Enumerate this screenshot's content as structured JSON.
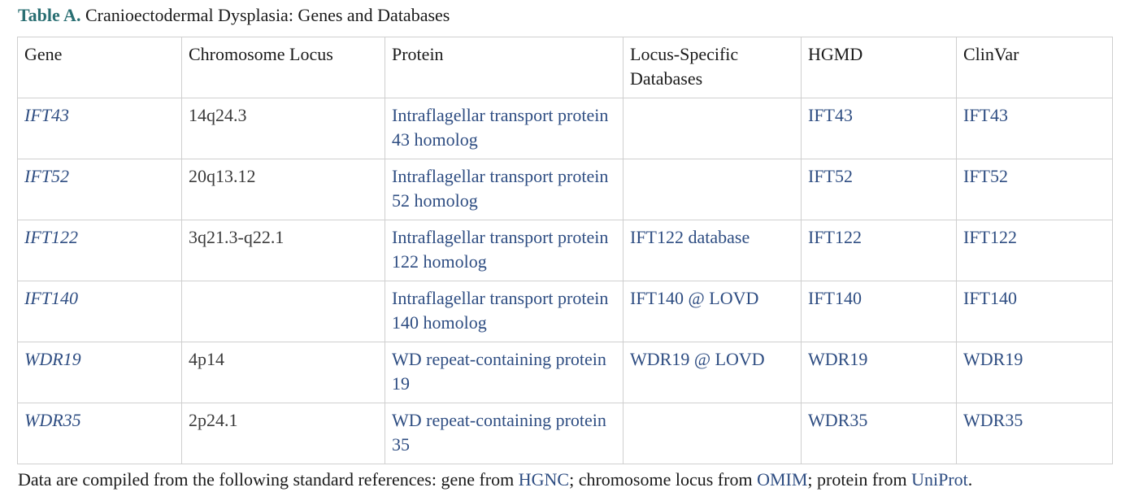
{
  "caption": {
    "label": "Table A.",
    "title": "Cranioectodermal Dysplasia: Genes and Databases"
  },
  "table": {
    "headers": [
      "Gene",
      "Chromosome Locus",
      "Protein",
      "Locus-Specific Databases",
      "HGMD",
      "ClinVar"
    ],
    "rows": [
      {
        "gene": "IFT43",
        "locus": "14q24.3",
        "protein": "Intraflagellar transport protein 43 homolog",
        "lsdb": "",
        "hgmd": "IFT43",
        "clinvar": "IFT43"
      },
      {
        "gene": "IFT52",
        "locus": "20q13.12",
        "protein": "Intraflagellar transport protein 52 homolog",
        "lsdb": "",
        "hgmd": "IFT52",
        "clinvar": "IFT52"
      },
      {
        "gene": "IFT122",
        "locus": "3q21.3-q22.1",
        "protein": "Intraflagellar transport protein 122 homolog",
        "lsdb": "IFT122 database",
        "hgmd": "IFT122",
        "clinvar": "IFT122"
      },
      {
        "gene": "IFT140",
        "locus": "",
        "protein": "Intraflagellar transport protein 140 homolog",
        "lsdb": "IFT140 @ LOVD",
        "hgmd": "IFT140",
        "clinvar": "IFT140"
      },
      {
        "gene": "WDR19",
        "locus": "4p14",
        "protein": "WD repeat-containing protein 19",
        "lsdb": "WDR19 @ LOVD",
        "hgmd": "WDR19",
        "clinvar": "WDR19"
      },
      {
        "gene": "WDR35",
        "locus": "2p24.1",
        "protein": "WD repeat-containing protein 35",
        "lsdb": "",
        "hgmd": "WDR35",
        "clinvar": "WDR35"
      }
    ]
  },
  "footer": {
    "text_1": "Data are compiled from the following standard references: gene from ",
    "link_hgnc": "HGNC",
    "text_2": "; chromosome locus from ",
    "link_omim": "OMIM",
    "text_3": "; protein from ",
    "link_uniprot": "UniProt",
    "text_4": "."
  }
}
